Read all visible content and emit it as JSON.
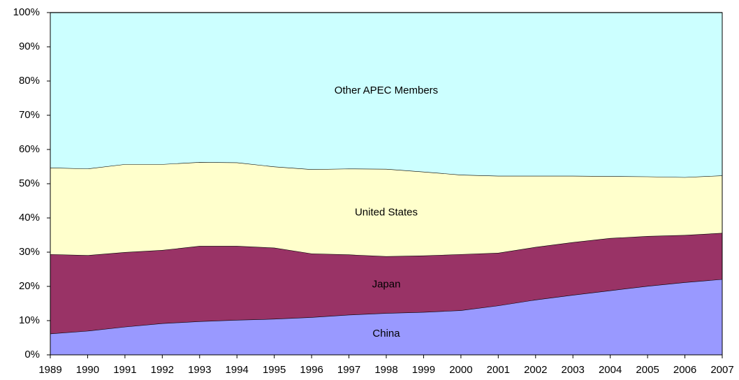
{
  "chart_data": {
    "type": "stacked-area",
    "categories": [
      "1989",
      "1990",
      "1991",
      "1992",
      "1993",
      "1994",
      "1995",
      "1996",
      "1997",
      "1998",
      "1999",
      "2000",
      "2001",
      "2002",
      "2003",
      "2004",
      "2005",
      "2006",
      "2007"
    ],
    "series": [
      {
        "name": "China",
        "color": "#9999ff",
        "values": [
          6.2,
          7.0,
          8.2,
          9.2,
          9.8,
          10.2,
          10.5,
          11.0,
          11.7,
          12.2,
          12.5,
          13.0,
          14.4,
          16.1,
          17.5,
          18.8,
          20.1,
          21.2,
          22.1
        ]
      },
      {
        "name": "Japan",
        "color": "#993366",
        "values": [
          23.2,
          22.1,
          21.8,
          21.4,
          22.0,
          21.6,
          20.8,
          18.6,
          17.6,
          16.6,
          16.5,
          16.4,
          15.4,
          15.4,
          15.4,
          15.3,
          14.6,
          13.8,
          13.5
        ]
      },
      {
        "name": "United States",
        "color": "#ffffcc",
        "values": [
          25.3,
          25.3,
          25.7,
          25.1,
          24.5,
          24.4,
          23.7,
          24.6,
          25.1,
          25.5,
          24.5,
          23.2,
          22.5,
          20.8,
          19.4,
          18.1,
          17.4,
          16.9,
          16.8
        ]
      },
      {
        "name": "Other APEC Members",
        "color": "#ccffff",
        "values": [
          45.3,
          45.6,
          44.3,
          44.3,
          43.7,
          43.8,
          45.0,
          45.8,
          45.6,
          45.7,
          46.5,
          47.4,
          47.7,
          47.7,
          47.7,
          47.8,
          47.9,
          48.1,
          47.6
        ]
      }
    ],
    "ylim": [
      0,
      100
    ],
    "yticks": [
      {
        "value": 0,
        "label": "0%"
      },
      {
        "value": 10,
        "label": "10%"
      },
      {
        "value": 20,
        "label": "20%"
      },
      {
        "value": 30,
        "label": "30%"
      },
      {
        "value": 40,
        "label": "40%"
      },
      {
        "value": 50,
        "label": "50%"
      },
      {
        "value": 60,
        "label": "60%"
      },
      {
        "value": 70,
        "label": "70%"
      },
      {
        "value": 80,
        "label": "80%"
      },
      {
        "value": 90,
        "label": "90%"
      },
      {
        "value": 100,
        "label": "100%"
      }
    ]
  }
}
